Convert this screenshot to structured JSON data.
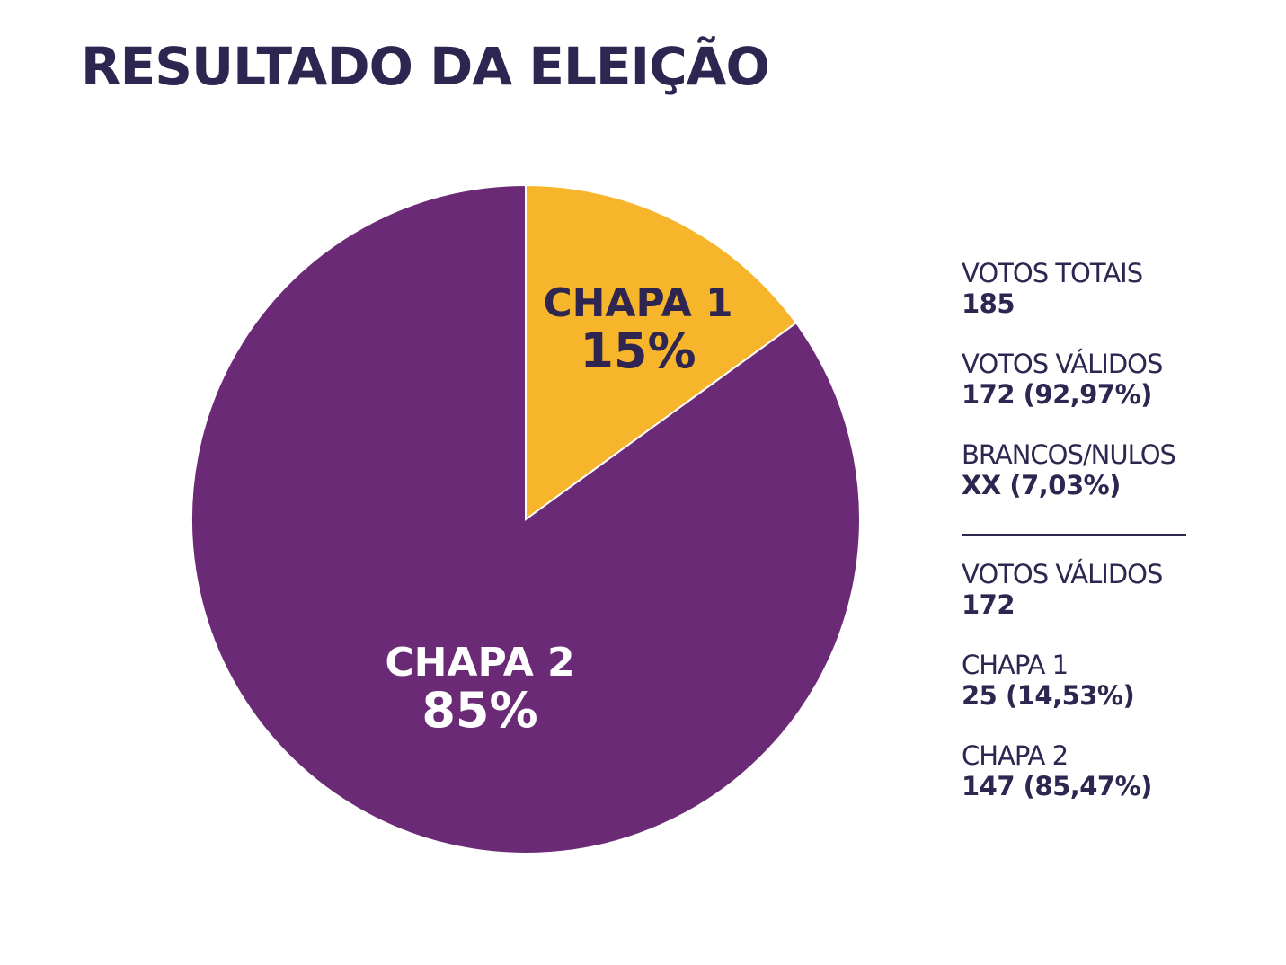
{
  "title": "RESULTADO DA ELEIÇÃO",
  "colors": {
    "chapa1": "#f7b52b",
    "chapa2": "#6b2a76",
    "text_dark": "#2e2650",
    "text_light": "#ffffff"
  },
  "chart_data": {
    "type": "pie",
    "title": "RESULTADO DA ELEIÇÃO",
    "slices": [
      {
        "label": "CHAPA 1",
        "value": 15,
        "display": "15%",
        "color": "#f7b52b"
      },
      {
        "label": "CHAPA 2",
        "value": 85,
        "display": "85%",
        "color": "#6b2a76"
      }
    ],
    "start_angle": "top, clockwise"
  },
  "stats": {
    "total": {
      "label": "VOTOS TOTAIS",
      "value": "185"
    },
    "valid": {
      "label": "VOTOS VÁLIDOS",
      "value": "172 (92,97%)"
    },
    "blank": {
      "label": "BRANCOS/NULOS",
      "value": "XX (7,03%)"
    },
    "valid2": {
      "label": "VOTOS VÁLIDOS",
      "value": "172"
    },
    "chapa1": {
      "label": "CHAPA 1",
      "value": "25 (14,53%)"
    },
    "chapa2": {
      "label": "CHAPA 2",
      "value": "147 (85,47%)"
    }
  }
}
